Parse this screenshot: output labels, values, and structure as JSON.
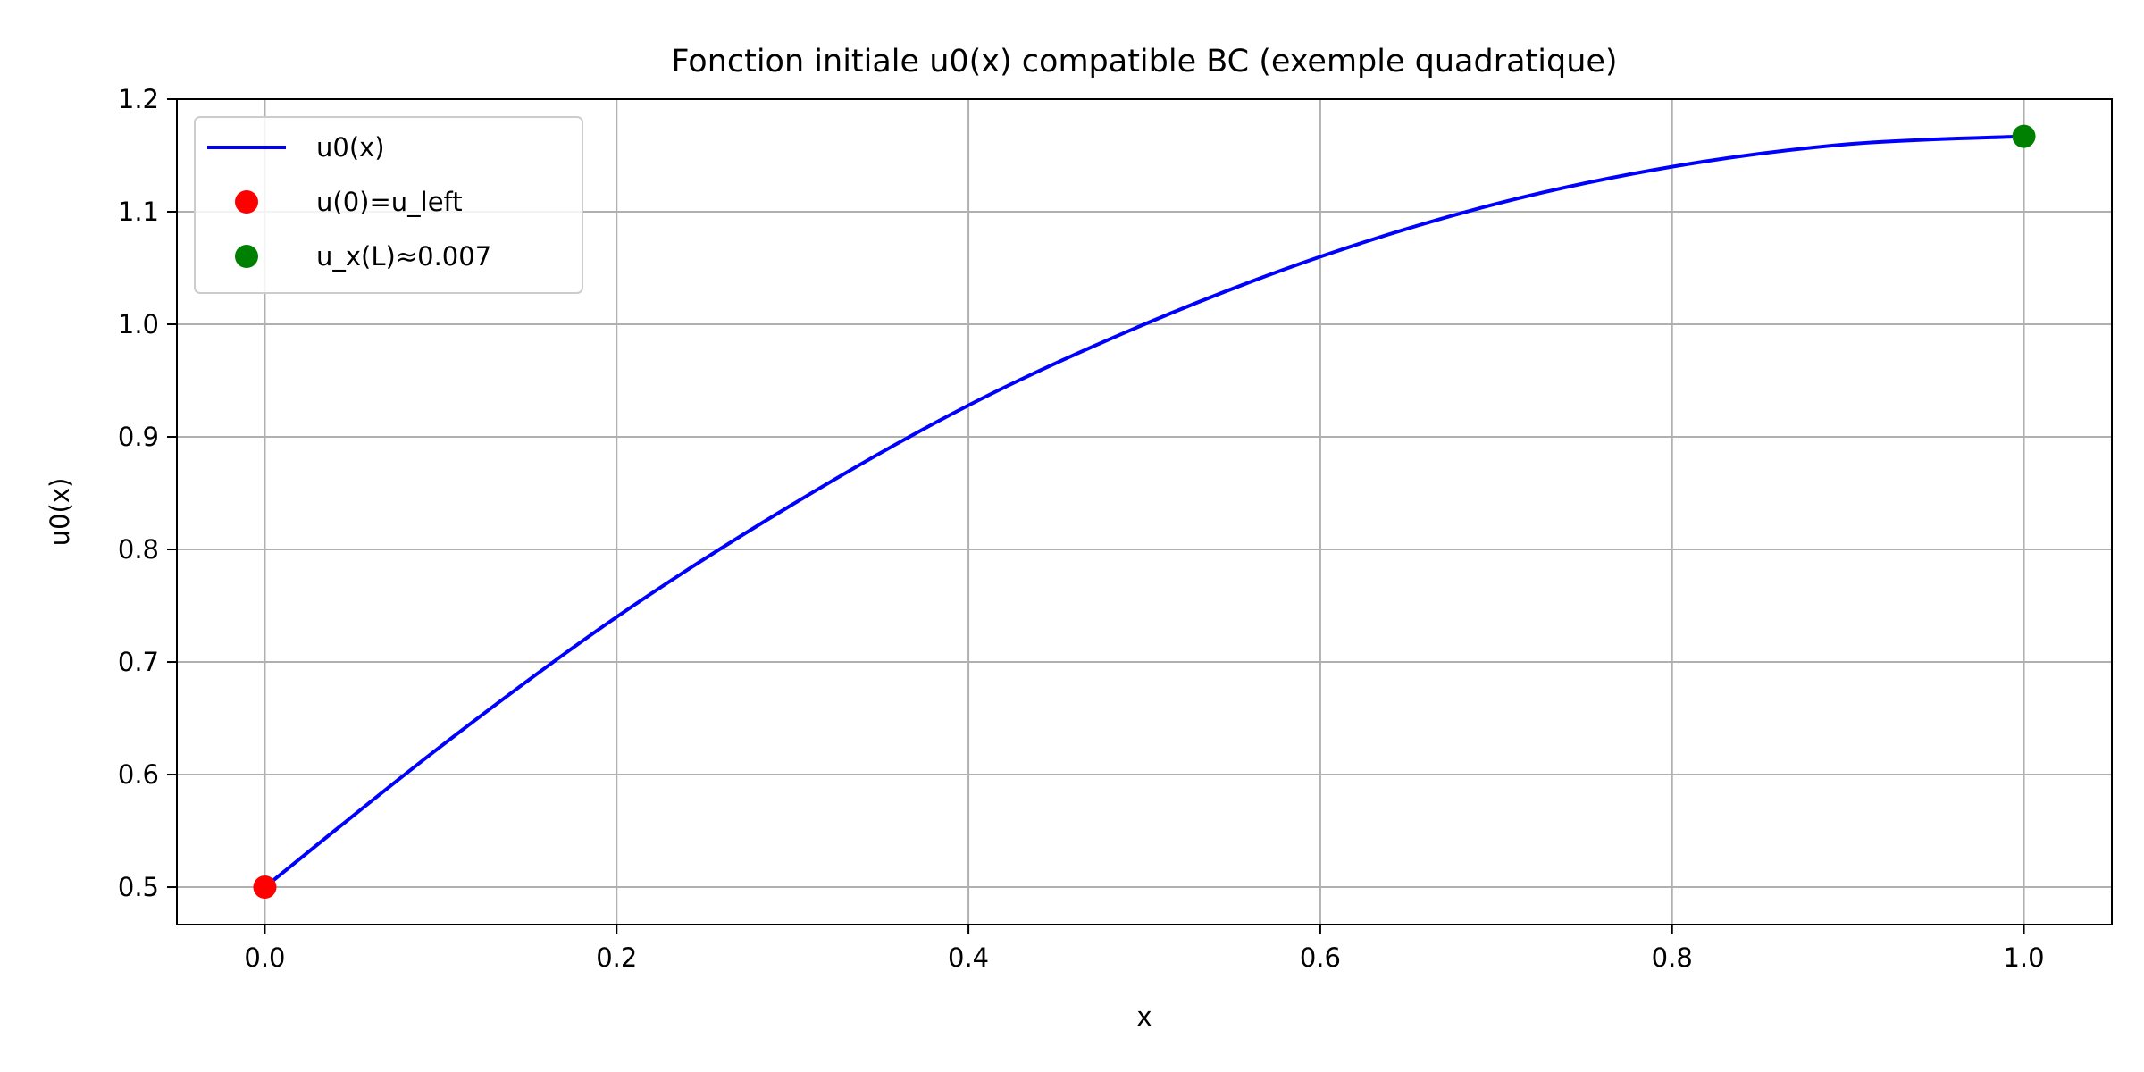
{
  "chart_data": {
    "type": "line",
    "title": "Fonction initiale u0(x) compatible BC (exemple quadratique)",
    "xlabel": "x",
    "ylabel": "u0(x)",
    "xlim": [
      -0.05,
      1.05
    ],
    "ylim": [
      0.4667,
      1.2
    ],
    "xticks": [
      0.0,
      0.2,
      0.4,
      0.6,
      0.8,
      1.0
    ],
    "xtick_labels": [
      "0.0",
      "0.2",
      "0.4",
      "0.6",
      "0.8",
      "1.0"
    ],
    "yticks": [
      0.5,
      0.6,
      0.7,
      0.8,
      0.9,
      1.0,
      1.1,
      1.2
    ],
    "ytick_labels": [
      "0.5",
      "0.6",
      "0.7",
      "0.8",
      "0.9",
      "1.0",
      "1.1",
      "1.2"
    ],
    "grid": true,
    "legend_position": "top-left",
    "series": [
      {
        "name": "u0(x)",
        "kind": "line",
        "color": "#0000ff",
        "x": [
          0.0,
          0.1,
          0.2,
          0.3,
          0.4,
          0.5,
          0.6,
          0.7,
          0.8,
          0.9,
          1.0
        ],
        "y": [
          0.5,
          0.625,
          0.74,
          0.84,
          0.928,
          1.0,
          1.06,
          1.107,
          1.14,
          1.16,
          1.167
        ]
      },
      {
        "name": "u(0)=u_left",
        "kind": "marker",
        "color": "#ff0000",
        "x": [
          0.0
        ],
        "y": [
          0.5
        ]
      },
      {
        "name": "u_x(L)≈0.007",
        "kind": "marker",
        "color": "#008000",
        "x": [
          1.0
        ],
        "y": [
          1.167
        ]
      }
    ]
  }
}
